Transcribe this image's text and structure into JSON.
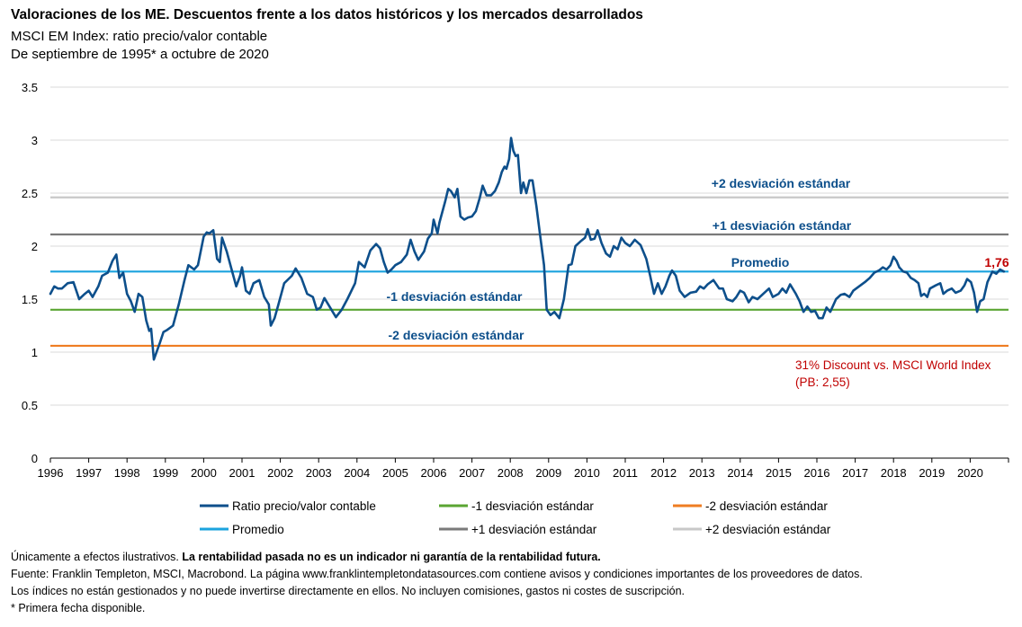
{
  "header": {
    "title": "Valoraciones de los ME. Descuentos frente a los datos históricos y los mercados desarrollados",
    "subtitle1": "MSCI EM Index: ratio precio/valor contable",
    "subtitle2": "De septiembre de 1995* a octubre de 2020"
  },
  "chart_data": {
    "type": "line",
    "xlim": [
      1996,
      2020.95
    ],
    "ylim": [
      0,
      3.5
    ],
    "y_ticks": [
      "0",
      "0.5",
      "1",
      "1.5",
      "2",
      "2.5",
      "3",
      "3.5"
    ],
    "x_ticks": [
      "1996",
      "1997",
      "1998",
      "1999",
      "2000",
      "2001",
      "2002",
      "2003",
      "2004",
      "2005",
      "2006",
      "2007",
      "2008",
      "2009",
      "2010",
      "2011",
      "2012",
      "2013",
      "2014",
      "2015",
      "2016",
      "2017",
      "2018",
      "2019",
      "2020"
    ],
    "grid": true,
    "legend_position": "bottom",
    "colors": {
      "ratio": "#0d4f8b",
      "mean": "#1ba3de",
      "minus1": "#5aa532",
      "plus1": "#7a7a7a",
      "minus2": "#ef7d22",
      "plus2": "#c8c8c8",
      "annotation_blue": "#0d4f8b",
      "annotation_red": "#c00000"
    },
    "reference_lines": {
      "mean": 1.76,
      "minus1": 1.4,
      "plus1": 2.11,
      "minus2": 1.06,
      "plus2": 2.46
    },
    "series": [
      {
        "name": "Ratio precio/valor contable",
        "points": [
          [
            1996.0,
            1.55
          ],
          [
            1996.1,
            1.62
          ],
          [
            1996.2,
            1.6
          ],
          [
            1996.3,
            1.6
          ],
          [
            1996.45,
            1.65
          ],
          [
            1996.6,
            1.66
          ],
          [
            1996.75,
            1.5
          ],
          [
            1996.9,
            1.55
          ],
          [
            1997.0,
            1.58
          ],
          [
            1997.1,
            1.52
          ],
          [
            1997.25,
            1.62
          ],
          [
            1997.35,
            1.72
          ],
          [
            1997.5,
            1.75
          ],
          [
            1997.62,
            1.86
          ],
          [
            1997.72,
            1.92
          ],
          [
            1997.8,
            1.7
          ],
          [
            1997.9,
            1.75
          ],
          [
            1998.0,
            1.55
          ],
          [
            1998.1,
            1.48
          ],
          [
            1998.2,
            1.38
          ],
          [
            1998.3,
            1.55
          ],
          [
            1998.4,
            1.52
          ],
          [
            1998.5,
            1.3
          ],
          [
            1998.58,
            1.2
          ],
          [
            1998.63,
            1.22
          ],
          [
            1998.7,
            0.93
          ],
          [
            1998.85,
            1.08
          ],
          [
            1998.95,
            1.19
          ],
          [
            1999.05,
            1.21
          ],
          [
            1999.2,
            1.25
          ],
          [
            1999.35,
            1.45
          ],
          [
            1999.5,
            1.68
          ],
          [
            1999.6,
            1.82
          ],
          [
            1999.75,
            1.78
          ],
          [
            1999.85,
            1.82
          ],
          [
            2000.0,
            2.09
          ],
          [
            2000.08,
            2.13
          ],
          [
            2000.15,
            2.12
          ],
          [
            2000.25,
            2.15
          ],
          [
            2000.35,
            1.88
          ],
          [
            2000.42,
            1.85
          ],
          [
            2000.48,
            2.08
          ],
          [
            2000.6,
            1.95
          ],
          [
            2000.75,
            1.75
          ],
          [
            2000.85,
            1.62
          ],
          [
            2000.95,
            1.72
          ],
          [
            2001.0,
            1.8
          ],
          [
            2001.1,
            1.58
          ],
          [
            2001.2,
            1.55
          ],
          [
            2001.3,
            1.65
          ],
          [
            2001.45,
            1.68
          ],
          [
            2001.58,
            1.52
          ],
          [
            2001.7,
            1.45
          ],
          [
            2001.75,
            1.25
          ],
          [
            2001.85,
            1.32
          ],
          [
            2001.95,
            1.45
          ],
          [
            2002.1,
            1.65
          ],
          [
            2002.3,
            1.72
          ],
          [
            2002.4,
            1.79
          ],
          [
            2002.55,
            1.7
          ],
          [
            2002.7,
            1.55
          ],
          [
            2002.85,
            1.52
          ],
          [
            2002.95,
            1.4
          ],
          [
            2003.05,
            1.42
          ],
          [
            2003.15,
            1.51
          ],
          [
            2003.3,
            1.42
          ],
          [
            2003.45,
            1.33
          ],
          [
            2003.6,
            1.4
          ],
          [
            2003.75,
            1.5
          ],
          [
            2003.95,
            1.65
          ],
          [
            2004.05,
            1.85
          ],
          [
            2004.2,
            1.8
          ],
          [
            2004.35,
            1.96
          ],
          [
            2004.5,
            2.02
          ],
          [
            2004.6,
            1.98
          ],
          [
            2004.7,
            1.85
          ],
          [
            2004.8,
            1.75
          ],
          [
            2004.9,
            1.78
          ],
          [
            2005.0,
            1.82
          ],
          [
            2005.15,
            1.85
          ],
          [
            2005.3,
            1.92
          ],
          [
            2005.4,
            2.06
          ],
          [
            2005.5,
            1.95
          ],
          [
            2005.6,
            1.87
          ],
          [
            2005.75,
            1.95
          ],
          [
            2005.85,
            2.07
          ],
          [
            2005.95,
            2.12
          ],
          [
            2006.0,
            2.25
          ],
          [
            2006.1,
            2.12
          ],
          [
            2006.15,
            2.22
          ],
          [
            2006.3,
            2.42
          ],
          [
            2006.38,
            2.54
          ],
          [
            2006.45,
            2.52
          ],
          [
            2006.55,
            2.46
          ],
          [
            2006.62,
            2.54
          ],
          [
            2006.7,
            2.28
          ],
          [
            2006.8,
            2.25
          ],
          [
            2006.9,
            2.27
          ],
          [
            2007.0,
            2.28
          ],
          [
            2007.1,
            2.33
          ],
          [
            2007.2,
            2.45
          ],
          [
            2007.28,
            2.57
          ],
          [
            2007.38,
            2.48
          ],
          [
            2007.5,
            2.48
          ],
          [
            2007.6,
            2.52
          ],
          [
            2007.7,
            2.6
          ],
          [
            2007.78,
            2.7
          ],
          [
            2007.85,
            2.75
          ],
          [
            2007.9,
            2.73
          ],
          [
            2007.97,
            2.82
          ],
          [
            2008.02,
            3.02
          ],
          [
            2008.08,
            2.9
          ],
          [
            2008.14,
            2.85
          ],
          [
            2008.2,
            2.86
          ],
          [
            2008.28,
            2.5
          ],
          [
            2008.34,
            2.6
          ],
          [
            2008.42,
            2.5
          ],
          [
            2008.5,
            2.62
          ],
          [
            2008.58,
            2.62
          ],
          [
            2008.68,
            2.38
          ],
          [
            2008.78,
            2.1
          ],
          [
            2008.88,
            1.82
          ],
          [
            2008.95,
            1.4
          ],
          [
            2009.05,
            1.35
          ],
          [
            2009.15,
            1.38
          ],
          [
            2009.28,
            1.32
          ],
          [
            2009.4,
            1.5
          ],
          [
            2009.52,
            1.82
          ],
          [
            2009.6,
            1.83
          ],
          [
            2009.7,
            2.0
          ],
          [
            2009.85,
            2.05
          ],
          [
            2009.95,
            2.08
          ],
          [
            2010.02,
            2.16
          ],
          [
            2010.1,
            2.06
          ],
          [
            2010.2,
            2.07
          ],
          [
            2010.28,
            2.15
          ],
          [
            2010.38,
            2.03
          ],
          [
            2010.5,
            1.93
          ],
          [
            2010.6,
            1.9
          ],
          [
            2010.7,
            2.0
          ],
          [
            2010.8,
            1.97
          ],
          [
            2010.9,
            2.08
          ],
          [
            2011.0,
            2.03
          ],
          [
            2011.12,
            2.0
          ],
          [
            2011.25,
            2.06
          ],
          [
            2011.4,
            2.01
          ],
          [
            2011.55,
            1.88
          ],
          [
            2011.65,
            1.72
          ],
          [
            2011.75,
            1.55
          ],
          [
            2011.85,
            1.65
          ],
          [
            2011.95,
            1.55
          ],
          [
            2012.05,
            1.62
          ],
          [
            2012.15,
            1.72
          ],
          [
            2012.22,
            1.77
          ],
          [
            2012.32,
            1.72
          ],
          [
            2012.42,
            1.58
          ],
          [
            2012.55,
            1.52
          ],
          [
            2012.7,
            1.56
          ],
          [
            2012.85,
            1.57
          ],
          [
            2012.95,
            1.62
          ],
          [
            2013.05,
            1.6
          ],
          [
            2013.15,
            1.64
          ],
          [
            2013.3,
            1.68
          ],
          [
            2013.45,
            1.6
          ],
          [
            2013.55,
            1.6
          ],
          [
            2013.65,
            1.5
          ],
          [
            2013.8,
            1.48
          ],
          [
            2013.9,
            1.52
          ],
          [
            2014.0,
            1.58
          ],
          [
            2014.1,
            1.56
          ],
          [
            2014.22,
            1.47
          ],
          [
            2014.32,
            1.52
          ],
          [
            2014.45,
            1.5
          ],
          [
            2014.6,
            1.55
          ],
          [
            2014.75,
            1.6
          ],
          [
            2014.85,
            1.52
          ],
          [
            2015.0,
            1.55
          ],
          [
            2015.1,
            1.6
          ],
          [
            2015.2,
            1.56
          ],
          [
            2015.3,
            1.64
          ],
          [
            2015.45,
            1.55
          ],
          [
            2015.55,
            1.48
          ],
          [
            2015.65,
            1.38
          ],
          [
            2015.75,
            1.43
          ],
          [
            2015.85,
            1.38
          ],
          [
            2015.95,
            1.39
          ],
          [
            2016.05,
            1.32
          ],
          [
            2016.15,
            1.32
          ],
          [
            2016.25,
            1.42
          ],
          [
            2016.35,
            1.38
          ],
          [
            2016.5,
            1.5
          ],
          [
            2016.62,
            1.54
          ],
          [
            2016.72,
            1.55
          ],
          [
            2016.85,
            1.52
          ],
          [
            2016.95,
            1.58
          ],
          [
            2017.1,
            1.62
          ],
          [
            2017.25,
            1.66
          ],
          [
            2017.38,
            1.7
          ],
          [
            2017.5,
            1.75
          ],
          [
            2017.62,
            1.77
          ],
          [
            2017.72,
            1.8
          ],
          [
            2017.82,
            1.78
          ],
          [
            2017.92,
            1.82
          ],
          [
            2018.0,
            1.9
          ],
          [
            2018.08,
            1.86
          ],
          [
            2018.15,
            1.8
          ],
          [
            2018.25,
            1.76
          ],
          [
            2018.35,
            1.75
          ],
          [
            2018.45,
            1.7
          ],
          [
            2018.55,
            1.68
          ],
          [
            2018.65,
            1.65
          ],
          [
            2018.72,
            1.53
          ],
          [
            2018.8,
            1.55
          ],
          [
            2018.88,
            1.52
          ],
          [
            2018.95,
            1.6
          ],
          [
            2019.1,
            1.63
          ],
          [
            2019.22,
            1.65
          ],
          [
            2019.3,
            1.55
          ],
          [
            2019.4,
            1.58
          ],
          [
            2019.52,
            1.6
          ],
          [
            2019.62,
            1.56
          ],
          [
            2019.75,
            1.58
          ],
          [
            2019.85,
            1.63
          ],
          [
            2019.92,
            1.69
          ],
          [
            2020.02,
            1.66
          ],
          [
            2020.1,
            1.56
          ],
          [
            2020.18,
            1.38
          ],
          [
            2020.26,
            1.48
          ],
          [
            2020.35,
            1.5
          ],
          [
            2020.45,
            1.66
          ],
          [
            2020.58,
            1.76
          ],
          [
            2020.68,
            1.74
          ],
          [
            2020.78,
            1.78
          ],
          [
            2020.88,
            1.76
          ]
        ]
      },
      {
        "name": "-1 desviación estándar"
      },
      {
        "name": "-2 desviación estándar"
      },
      {
        "name": "Promedio"
      },
      {
        "name": "+1 desviación estándar"
      },
      {
        "name": "+2 desviación estándar"
      }
    ],
    "annotations": {
      "plus2": "+2 desviación estándar",
      "plus1": "+1 desviación estándar",
      "mean": "Promedio",
      "minus1": "-1 desviación estándar",
      "minus2": "-2 desviación estándar",
      "last_value": "1,76",
      "discount_line1": "31% Discount vs. MSCI World Index",
      "discount_line2": "(PB: 2,55)"
    }
  },
  "footer": {
    "line1_normal": "Únicamente a efectos ilustrativos. ",
    "line1_bold": "La rentabilidad pasada no es un indicador ni garantía de la rentabilidad futura.",
    "line2": "Fuente: Franklin Templeton, MSCI, Macrobond. La página www.franklintempletondatasources.com contiene avisos y condiciones importantes de los proveedores de datos.",
    "line3": "Los índices no están gestionados y no puede invertirse directamente en ellos. No incluyen comisiones, gastos ni costes de suscripción.",
    "line4": "* Primera fecha disponible."
  }
}
